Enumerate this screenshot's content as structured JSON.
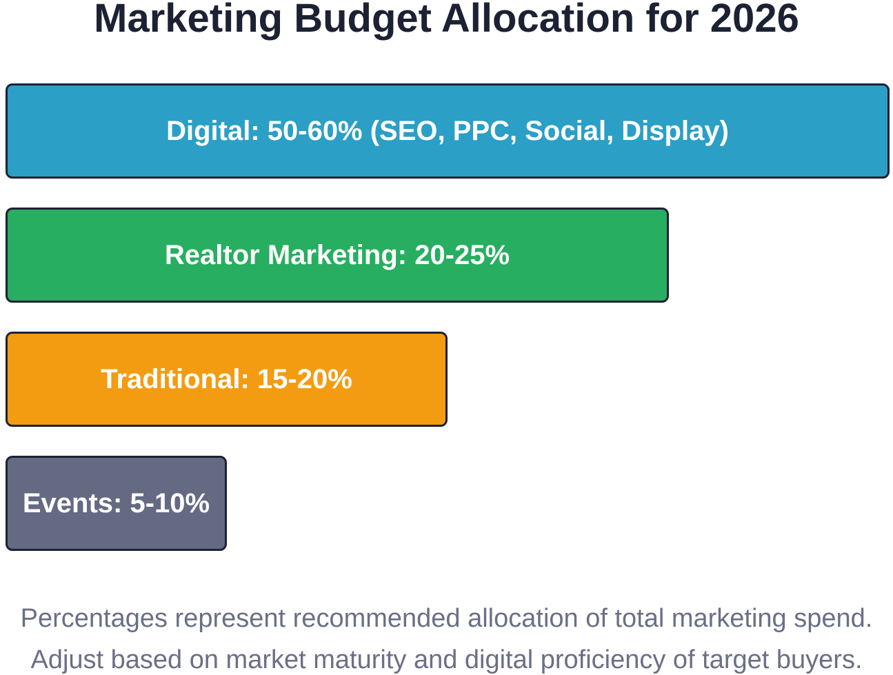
{
  "chart_data": {
    "type": "bar",
    "orientation": "horizontal",
    "title": "Marketing Budget Allocation for 2026",
    "categories": [
      "Digital",
      "Realtor Marketing",
      "Traditional",
      "Events"
    ],
    "labels": [
      "Digital: 50-60% (SEO, PPC, Social, Display)",
      "Realtor Marketing: 20-25%",
      "Traditional: 15-20%",
      "Events: 5-10%"
    ],
    "ranges": [
      [
        50,
        60
      ],
      [
        20,
        25
      ],
      [
        15,
        20
      ],
      [
        5,
        10
      ]
    ],
    "relative_bar_lengths": [
      4,
      3,
      2,
      1
    ],
    "colors": [
      "#2b9fc6",
      "#27ae60",
      "#f39c12",
      "#656a83"
    ],
    "grid": false,
    "legend": "none"
  },
  "footnote": {
    "line1": "Percentages represent recommended allocation of total marketing spend.",
    "line2": "Adjust based on market maturity and digital proficiency of target buyers."
  }
}
